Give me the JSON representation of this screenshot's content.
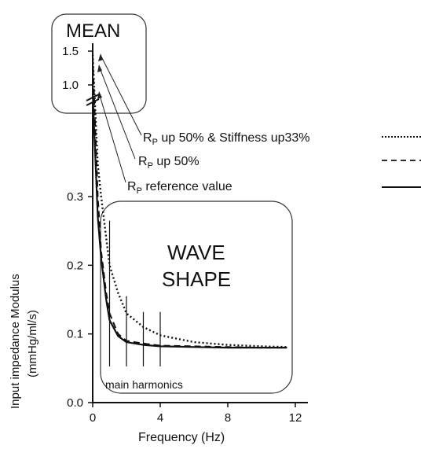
{
  "chart_data": {
    "type": "line",
    "xlabel": "Frequency (Hz)",
    "ylabel_line1": "Input impedance Modulus",
    "ylabel_line2": "(mmHg/ml/s)",
    "x_ticks": [
      0,
      4,
      8,
      12
    ],
    "y_ticks_lower": [
      "0.0",
      "0.1",
      "0.2",
      "0.3"
    ],
    "y_ticks_upper": [
      "1.0",
      "1.5"
    ],
    "y_axis_break": "between 0.3 and 1.0 (upper segment 1.0–1.5 compressed)",
    "xlim": [
      0,
      12.5
    ],
    "series": [
      {
        "name": "RP up 50% & Stiffness up33%",
        "style": "dotted",
        "x": [
          0,
          0.3,
          0.5,
          0.8,
          1.0,
          1.5,
          2.0,
          3.0,
          4.0,
          6.0,
          8.0,
          10.0,
          11.5
        ],
        "y": [
          1.45,
          0.5,
          0.3,
          0.24,
          0.2,
          0.16,
          0.13,
          0.11,
          0.098,
          0.088,
          0.084,
          0.082,
          0.081
        ]
      },
      {
        "name": "RP up 50%",
        "style": "dashed",
        "x": [
          0,
          0.3,
          0.5,
          0.8,
          1.0,
          1.5,
          2.0,
          3.0,
          4.0,
          6.0,
          8.0,
          10.0,
          11.5
        ],
        "y": [
          1.4,
          0.3,
          0.22,
          0.16,
          0.13,
          0.1,
          0.09,
          0.086,
          0.083,
          0.082,
          0.081,
          0.08,
          0.08
        ]
      },
      {
        "name": "RP reference value",
        "style": "solid",
        "x": [
          0,
          0.3,
          0.5,
          0.8,
          1.0,
          1.5,
          2.0,
          3.0,
          4.0,
          6.0,
          8.0,
          10.0,
          11.5
        ],
        "y": [
          0.95,
          0.27,
          0.21,
          0.15,
          0.12,
          0.097,
          0.088,
          0.084,
          0.082,
          0.081,
          0.08,
          0.08,
          0.08
        ]
      }
    ],
    "legend": [
      {
        "prefix": "R",
        "sub": "P",
        "rest": " up 50% & Stiffness up33%",
        "style": "dotted"
      },
      {
        "prefix": "R",
        "sub": "P",
        "rest": " up 50%",
        "style": "dashed"
      },
      {
        "prefix": "R",
        "sub": "P",
        "rest": " reference value",
        "style": "solid"
      }
    ],
    "annotations": {
      "mean": "MEAN",
      "wave_line1": "WAVE",
      "wave_line2": "SHAPE",
      "harmonics": "main harmonics"
    },
    "harmonic_markers": [
      {
        "x": 1.0,
        "y_top": 0.265
      },
      {
        "x": 2.0,
        "y_top": 0.155
      },
      {
        "x": 3.0,
        "y_top": 0.132
      },
      {
        "x": 4.0,
        "y_top": 0.132
      }
    ]
  }
}
